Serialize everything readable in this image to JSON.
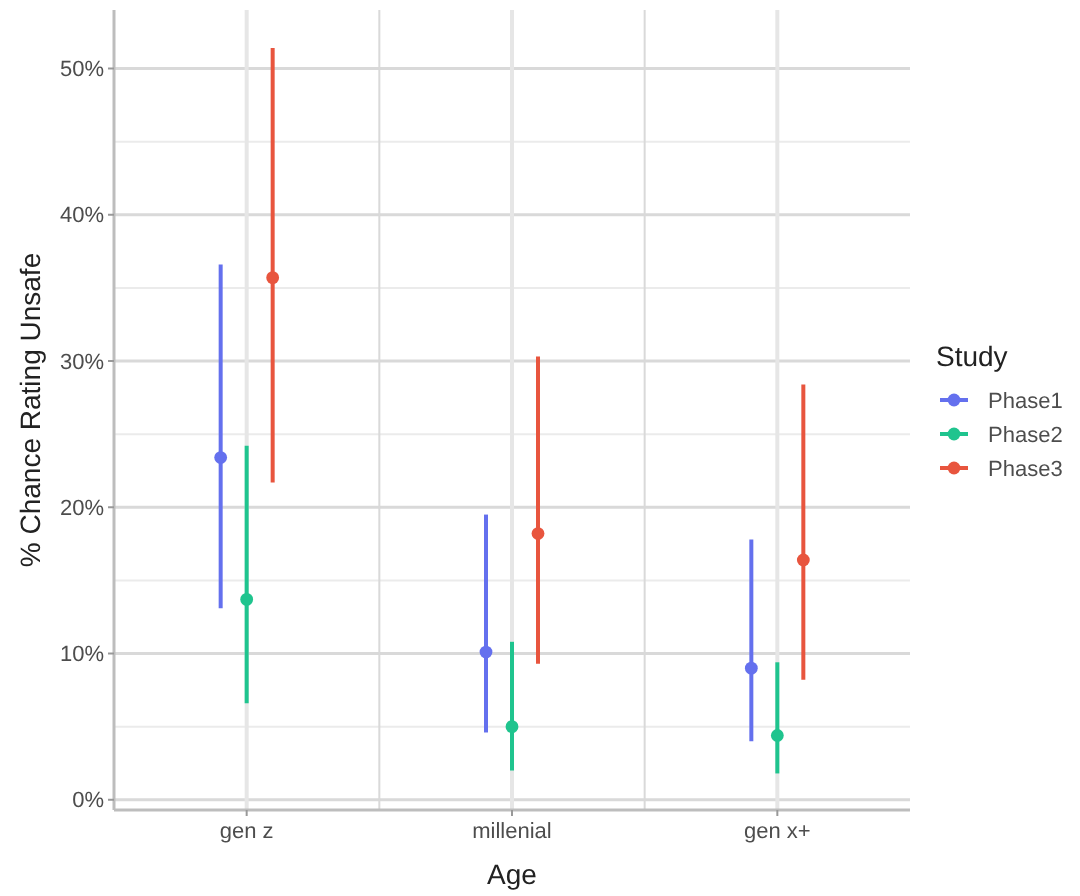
{
  "chart_data": {
    "type": "scatter",
    "xlabel": "Age",
    "ylabel": "% Chance Rating Unsafe",
    "legend_title": "Study",
    "categories": [
      "gen z",
      "millenial",
      "gen x+"
    ],
    "series": [
      {
        "name": "Phase1",
        "color": "#6470ee",
        "values": [
          23.4,
          10.1,
          9.0
        ],
        "errors": [
          [
            13.1,
            36.6
          ],
          [
            4.6,
            19.5
          ],
          [
            4.0,
            17.8
          ]
        ]
      },
      {
        "name": "Phase2",
        "color": "#1fc48e",
        "values": [
          13.7,
          5.0,
          4.4
        ],
        "errors": [
          [
            6.6,
            24.2
          ],
          [
            2.0,
            10.8
          ],
          [
            1.8,
            9.4
          ]
        ]
      },
      {
        "name": "Phase3",
        "color": "#e8553e",
        "values": [
          35.7,
          18.2,
          16.4
        ],
        "errors": [
          [
            21.7,
            51.4
          ],
          [
            9.3,
            30.3
          ],
          [
            8.2,
            28.4
          ]
        ]
      }
    ],
    "ylim": [
      -0.7,
      54
    ],
    "yticks": [
      {
        "value": 0,
        "label": "0%"
      },
      {
        "value": 10,
        "label": "10%"
      },
      {
        "value": 20,
        "label": "20%"
      },
      {
        "value": 30,
        "label": "30%"
      },
      {
        "value": 40,
        "label": "40%"
      },
      {
        "value": 50,
        "label": "50%"
      }
    ],
    "grid": true,
    "legend": "right",
    "marker": "circle"
  }
}
